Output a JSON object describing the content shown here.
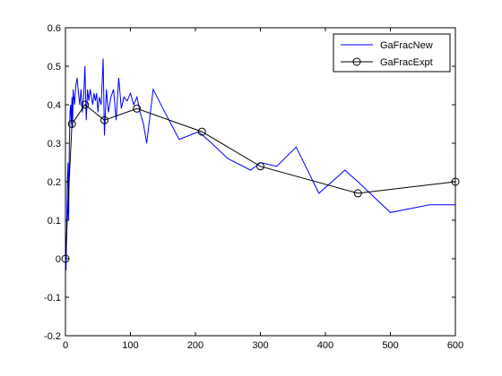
{
  "chart_data": {
    "type": "line",
    "xlim": [
      0,
      600
    ],
    "ylim": [
      -0.2,
      0.6
    ],
    "xticks": [
      "0",
      "100",
      "200",
      "300",
      "400",
      "500",
      "600"
    ],
    "yticks": [
      "-0.2",
      "-0.1",
      "0",
      "0.1",
      "0.2",
      "0.3",
      "0.4",
      "0.5",
      "0.6"
    ],
    "grid": false,
    "legend_position": "top-right",
    "series": [
      {
        "name": "GaFracNew",
        "color": "#0000ff",
        "marker": "none",
        "x": [
          0,
          1,
          2,
          3,
          4,
          5,
          6,
          7,
          8,
          9,
          10,
          11,
          12,
          14,
          16,
          18,
          20,
          22,
          24,
          26,
          28,
          30,
          32,
          34,
          36,
          38,
          40,
          42,
          44,
          46,
          48,
          50,
          52,
          55,
          58,
          60,
          63,
          66,
          70,
          74,
          78,
          82,
          86,
          90,
          95,
          100,
          105,
          110,
          115,
          120,
          125,
          135,
          150,
          175,
          205,
          225,
          250,
          285,
          300,
          325,
          355,
          390,
          430,
          450,
          500,
          560,
          600
        ],
        "y": [
          0.0,
          -0.03,
          0.08,
          0.2,
          0.25,
          0.1,
          0.3,
          0.38,
          0.4,
          0.35,
          0.42,
          0.34,
          0.44,
          0.4,
          0.45,
          0.47,
          0.43,
          0.4,
          0.44,
          0.38,
          0.42,
          0.5,
          0.36,
          0.44,
          0.41,
          0.44,
          0.42,
          0.4,
          0.43,
          0.41,
          0.43,
          0.38,
          0.42,
          0.4,
          0.52,
          0.32,
          0.44,
          0.38,
          0.42,
          0.44,
          0.36,
          0.47,
          0.39,
          0.42,
          0.41,
          0.43,
          0.4,
          0.42,
          0.38,
          0.35,
          0.3,
          0.44,
          0.39,
          0.31,
          0.33,
          0.3,
          0.26,
          0.23,
          0.25,
          0.24,
          0.29,
          0.17,
          0.23,
          0.2,
          0.12,
          0.14,
          0.14
        ]
      },
      {
        "name": "GaFracExpt",
        "color": "#000000",
        "marker": "o",
        "x": [
          0,
          10,
          30,
          60,
          110,
          210,
          300,
          450,
          600
        ],
        "y": [
          0.0,
          0.35,
          0.4,
          0.36,
          0.39,
          0.33,
          0.24,
          0.17,
          0.2
        ]
      }
    ]
  }
}
